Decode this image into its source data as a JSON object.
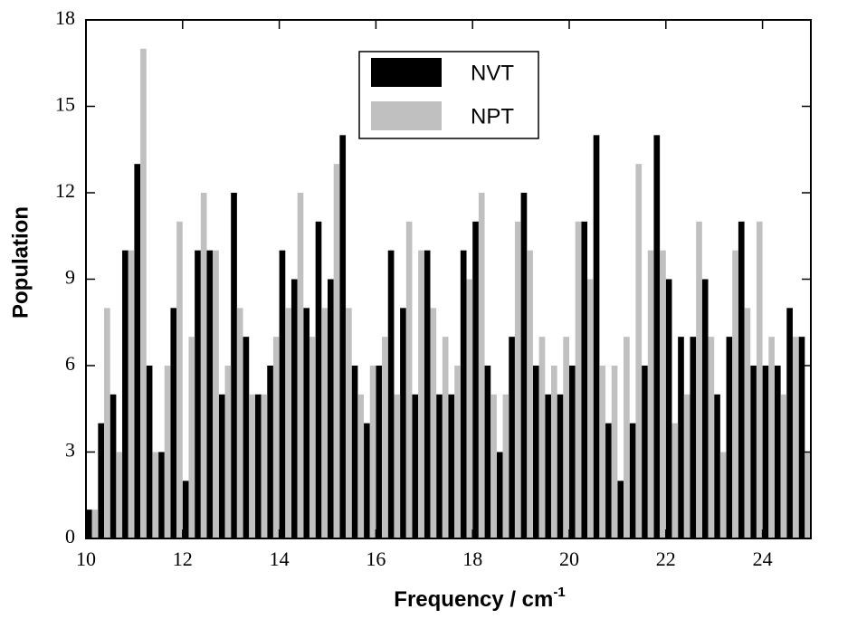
{
  "chart_data": {
    "type": "histogram",
    "x_label": "Frequency / cm",
    "x_label_sup": "-1",
    "y_label": "Population",
    "bins": [
      10,
      10.25,
      10.5,
      10.75,
      11,
      11.25,
      11.5,
      11.75,
      12,
      12.25,
      12.5,
      12.75,
      13,
      13.25,
      13.5,
      13.75,
      14,
      14.25,
      14.5,
      14.75,
      15,
      15.25,
      15.5,
      15.75,
      16,
      16.25,
      16.5,
      16.75,
      17,
      17.25,
      17.5,
      17.75,
      18,
      18.25,
      18.5,
      18.75,
      19,
      19.25,
      19.5,
      19.75,
      20,
      20.25,
      20.5,
      20.75,
      21,
      21.25,
      21.5,
      21.75,
      22,
      22.25,
      22.5,
      22.75,
      23,
      23.25,
      23.5,
      23.75,
      24,
      24.25,
      24.5,
      24.75,
      25
    ],
    "series": [
      {
        "name": "NVT",
        "color": "#000000",
        "values": [
          1,
          4,
          5,
          10,
          13,
          6,
          3,
          8,
          2,
          10,
          10,
          5,
          12,
          7,
          5,
          6,
          10,
          9,
          8,
          11,
          9,
          14,
          6,
          4,
          6,
          10,
          8,
          5,
          10,
          5,
          5,
          10,
          11,
          6,
          3,
          7,
          12,
          6,
          5,
          5,
          6,
          11,
          14,
          4,
          2,
          4,
          6,
          14,
          9,
          7,
          7,
          9,
          5,
          7,
          11,
          6,
          6,
          6,
          8,
          7
        ]
      },
      {
        "name": "NPT",
        "color": "#c0c0c0",
        "values": [
          1,
          8,
          3,
          10,
          17,
          3,
          6,
          11,
          7,
          12,
          10,
          6,
          8,
          5,
          5,
          7,
          8,
          12,
          7,
          8,
          13,
          8,
          5,
          6,
          7,
          5,
          11,
          10,
          8,
          7,
          6,
          9,
          12,
          5,
          5,
          11,
          10,
          7,
          6,
          7,
          11,
          9,
          6,
          6,
          7,
          13,
          10,
          10,
          4,
          5,
          11,
          7,
          3,
          10,
          8,
          11,
          7,
          5,
          7,
          3
        ]
      }
    ],
    "xlim": [
      10,
      25
    ],
    "xticks": [
      10,
      12,
      14,
      16,
      18,
      20,
      22,
      24
    ],
    "ylim": [
      0,
      18
    ],
    "yticks": [
      0,
      3,
      6,
      9,
      12,
      15,
      18
    ],
    "legend": "top-center"
  }
}
